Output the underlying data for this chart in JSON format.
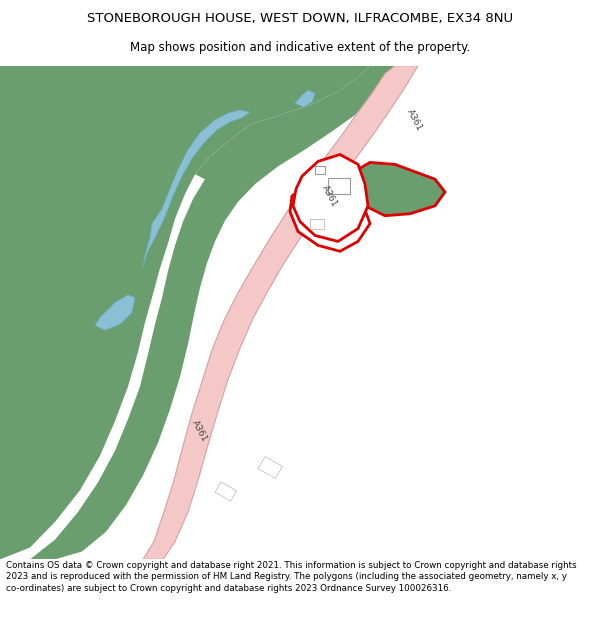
{
  "title_line1": "STONEBOROUGH HOUSE, WEST DOWN, ILFRACOMBE, EX34 8NU",
  "title_line2": "Map shows position and indicative extent of the property.",
  "footer_text": "Contains OS data © Crown copyright and database right 2021. This information is subject to Crown copyright and database rights 2023 and is reproduced with the permission of HM Land Registry. The polygons (including the associated geometry, namely x, y co-ordinates) are subject to Crown copyright and database rights 2023 Ordnance Survey 100026316.",
  "bg_color": "#ffffff",
  "map_bg": "#ffffff",
  "green_color": "#6b9e6e",
  "road_fill": "#f5c8c8",
  "road_edge": "#d4a0a0",
  "water_color": "#8abfd4",
  "plot_red": "#dd0000",
  "white": "#ffffff",
  "green_plot": "#6b9e6e",
  "label_color": "#444444"
}
